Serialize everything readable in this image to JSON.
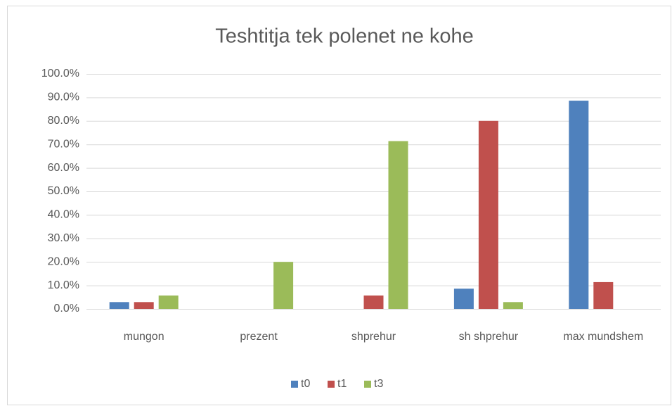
{
  "chart_data": {
    "type": "bar",
    "title": "Teshtitja tek polenet ne kohe",
    "categories": [
      "mungon",
      "prezent",
      "shprehur",
      "sh shprehur",
      "max mundshem"
    ],
    "series": [
      {
        "name": "t0",
        "color": "#4f81bd",
        "values": [
          2.9,
          0,
          0,
          8.6,
          88.6
        ]
      },
      {
        "name": "t1",
        "color": "#c0504d",
        "values": [
          2.9,
          0,
          5.7,
          80.0,
          11.4
        ]
      },
      {
        "name": "t3",
        "color": "#9bbb59",
        "values": [
          5.7,
          20.0,
          71.4,
          2.9,
          0
        ]
      }
    ],
    "ylim": [
      0,
      100
    ],
    "yticks": [
      {
        "value": 0,
        "label": "0.0%"
      },
      {
        "value": 10,
        "label": "10.0%"
      },
      {
        "value": 20,
        "label": "20.0%"
      },
      {
        "value": 30,
        "label": "30.0%"
      },
      {
        "value": 40,
        "label": "40.0%"
      },
      {
        "value": 50,
        "label": "50.0%"
      },
      {
        "value": 60,
        "label": "60.0%"
      },
      {
        "value": 70,
        "label": "70.0%"
      },
      {
        "value": 80,
        "label": "80.0%"
      },
      {
        "value": 90,
        "label": "90.0%"
      },
      {
        "value": 100,
        "label": "100.0%"
      }
    ],
    "grid": true,
    "legend": "bottom"
  }
}
